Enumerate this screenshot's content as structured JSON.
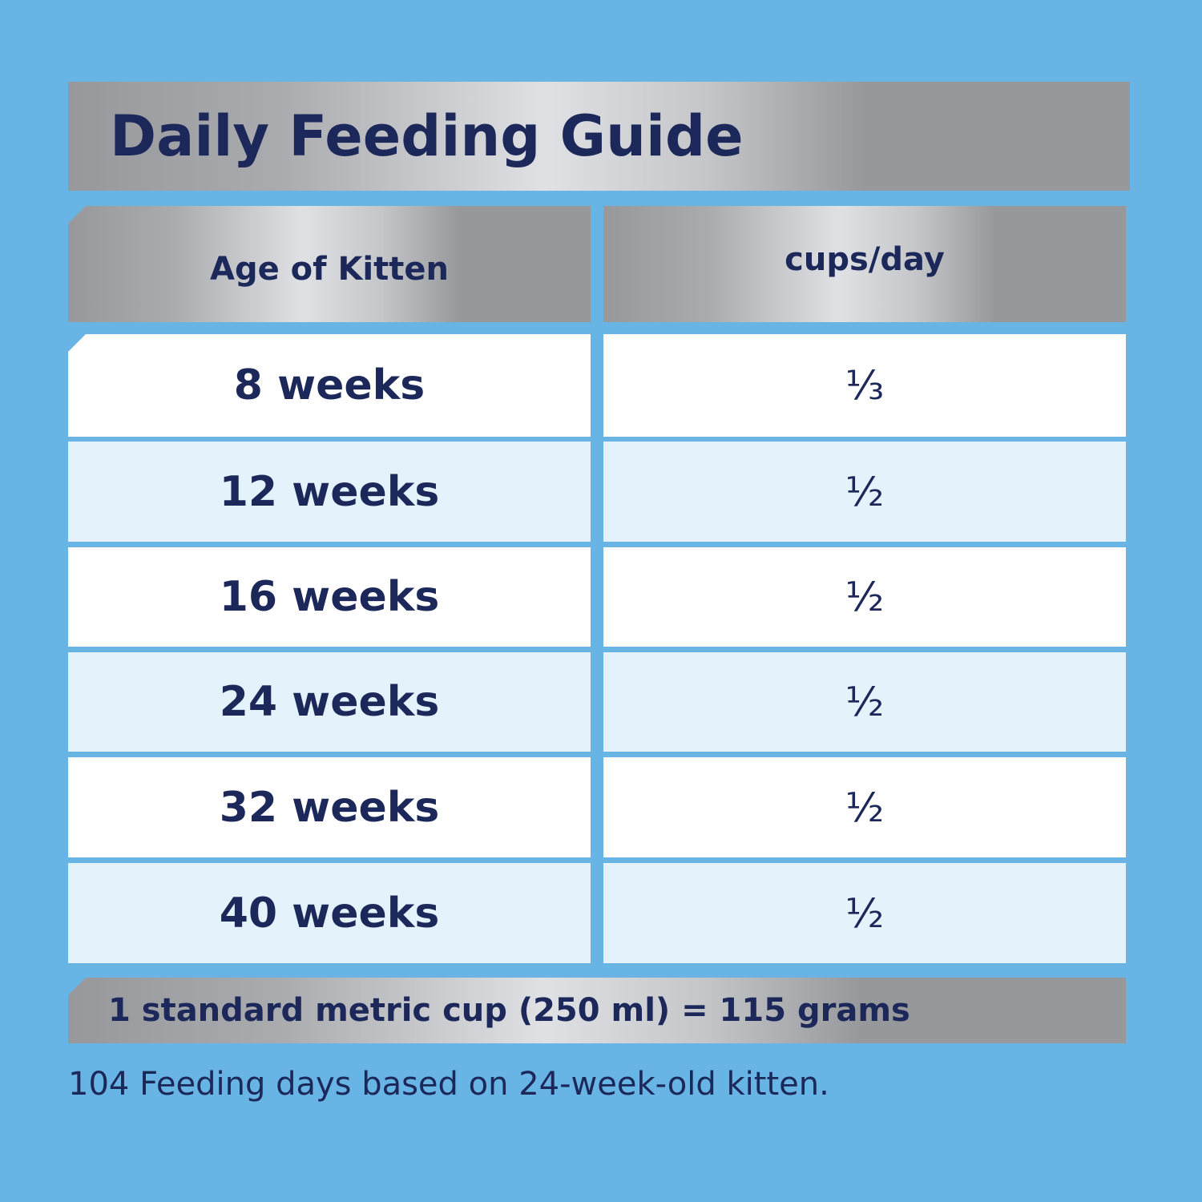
{
  "header": {
    "title": "Daily Feeding Guide"
  },
  "table": {
    "columns": [
      "Age of Kitten",
      "cups/day"
    ],
    "rows": [
      [
        "8 weeks",
        "⅓"
      ],
      [
        "12 weeks",
        "½"
      ],
      [
        "16 weeks",
        "½"
      ],
      [
        "24 weeks",
        "½"
      ],
      [
        "32 weeks",
        "½"
      ],
      [
        "40 weeks",
        "½"
      ]
    ]
  },
  "conversion": "1 standard metric cup (250 ml) = 115 grams",
  "footnote": "104 Feeding days based on 24-week-old kitten."
}
